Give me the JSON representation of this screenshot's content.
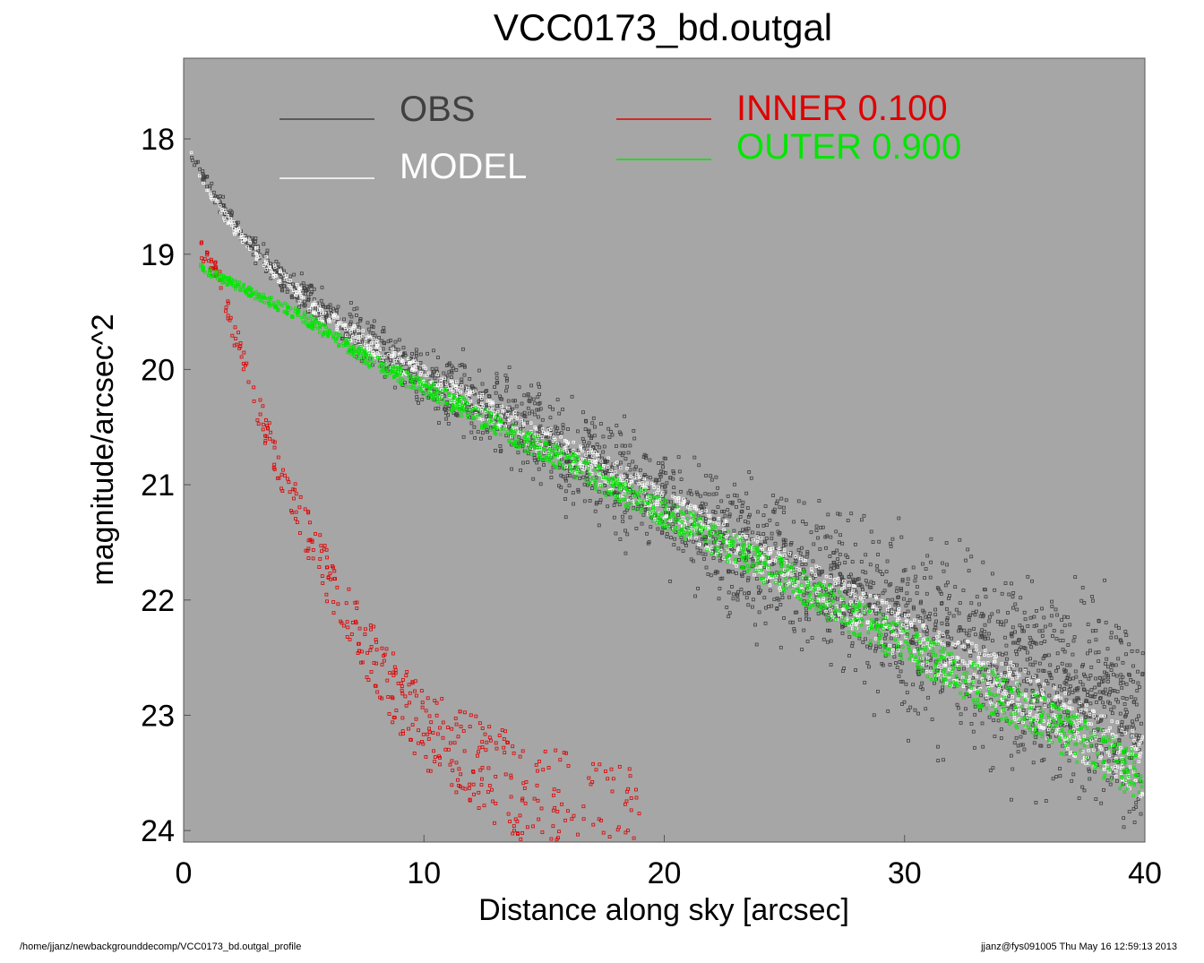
{
  "footer": {
    "path": "/home/jjanz/newbackgrounddecomp/VCC0173_bd.outgal_profile",
    "stamp": "jjanz@fys091005  Thu May 16 12:59:13 2013"
  },
  "legend": {
    "obs": "OBS",
    "model": "MODEL",
    "inner": "INNER  0.100",
    "outer": "OUTER  0.900"
  },
  "colors": {
    "background": "#a6a6a6",
    "obs": "#404040",
    "model": "#ffffff",
    "inner": "#e00000",
    "outer": "#00e600"
  },
  "chart_data": {
    "type": "scatter",
    "title": "VCC0173_bd.outgal",
    "xlabel": "Distance along sky [arcsec]",
    "ylabel": "magnitude/arcsec^2",
    "xlim": [
      0,
      40
    ],
    "ylim": [
      24.1,
      17.3
    ],
    "y_inverted": true,
    "xticks": [
      "0",
      "10",
      "20",
      "30",
      "40"
    ],
    "yticks": [
      "18",
      "19",
      "20",
      "21",
      "22",
      "23",
      "24"
    ],
    "grid": false,
    "legend_position": "top",
    "series": [
      {
        "name": "OBS",
        "marker": "square",
        "note_points": "dense cloud",
        "x": [
          0.3,
          1,
          2,
          3,
          4,
          5,
          6,
          8,
          10,
          12,
          15,
          18,
          20,
          25,
          30,
          35,
          40
        ],
        "y": [
          18.15,
          18.4,
          18.7,
          18.95,
          19.2,
          19.35,
          19.5,
          19.8,
          20.05,
          20.25,
          20.6,
          20.95,
          21.2,
          21.7,
          22.2,
          22.7,
          23.1
        ]
      },
      {
        "name": "MODEL",
        "marker": "square",
        "x": [
          0.3,
          1,
          2,
          3,
          4,
          5,
          6,
          8,
          10,
          12,
          15,
          18,
          20,
          25,
          30,
          35,
          40
        ],
        "y": [
          18.15,
          18.45,
          18.75,
          18.98,
          19.2,
          19.38,
          19.55,
          19.82,
          20.07,
          20.28,
          20.62,
          20.95,
          21.2,
          21.75,
          22.3,
          22.85,
          23.45
        ]
      },
      {
        "name": "INNER",
        "scale": "0.100",
        "marker": "square",
        "x": [
          0.7,
          1.5,
          2,
          3,
          4,
          5,
          6,
          7,
          8,
          9,
          10,
          12,
          14,
          16,
          18,
          19
        ],
        "y": [
          18.95,
          19.2,
          19.6,
          20.3,
          20.85,
          21.35,
          21.8,
          22.2,
          22.55,
          22.85,
          23.1,
          23.4,
          23.65,
          23.85,
          24.0,
          24.1
        ]
      },
      {
        "name": "OUTER",
        "scale": "0.900",
        "marker": "square",
        "x": [
          0.7,
          1,
          2,
          3,
          5,
          8,
          10,
          15,
          20,
          25,
          30,
          35,
          40
        ],
        "y": [
          19.1,
          19.15,
          19.25,
          19.35,
          19.55,
          19.95,
          20.15,
          20.7,
          21.25,
          21.8,
          22.4,
          22.95,
          23.55
        ]
      }
    ]
  }
}
